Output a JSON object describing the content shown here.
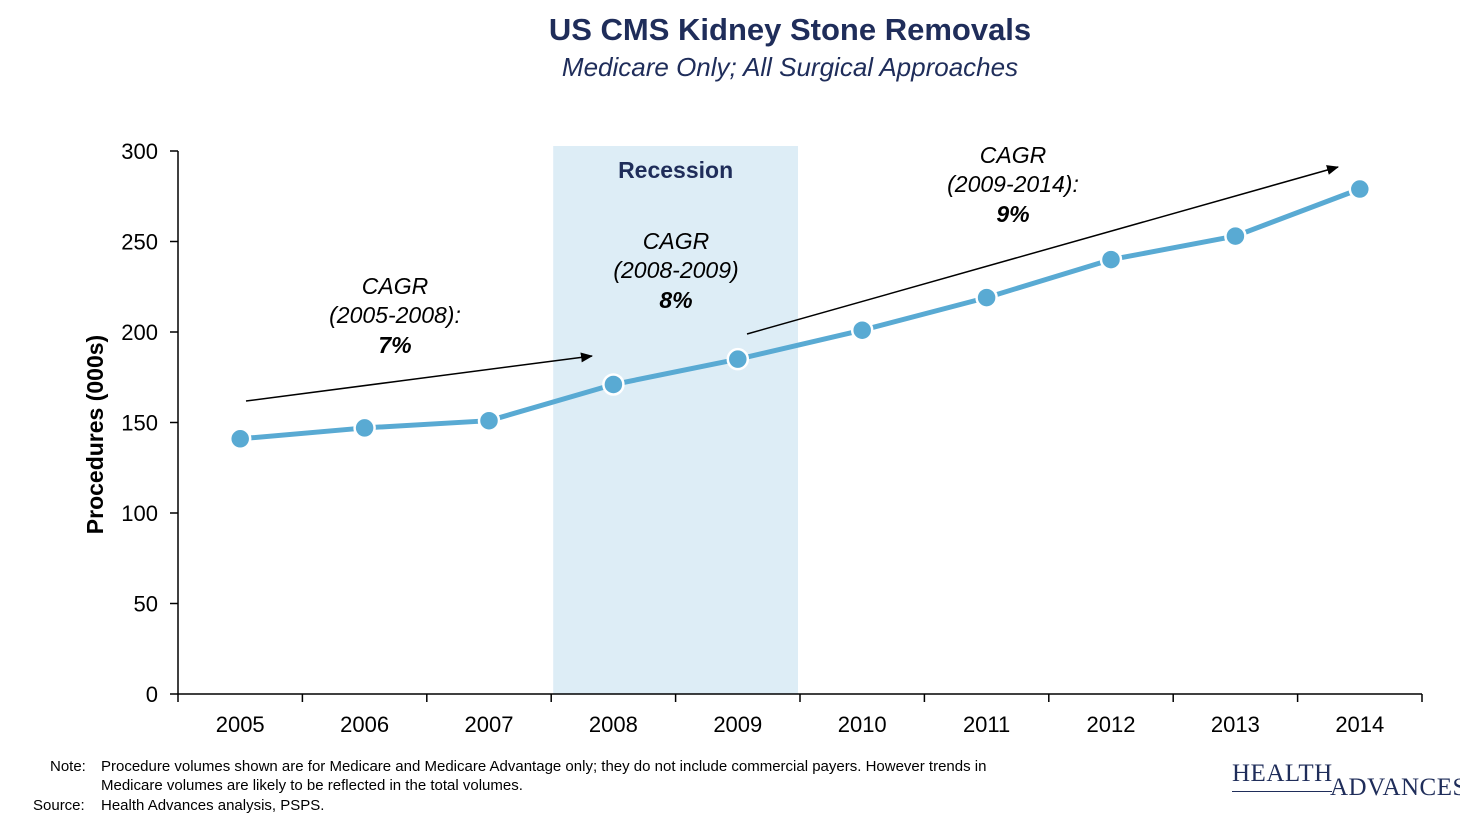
{
  "header": {
    "title": "US CMS Kidney Stone Removals",
    "subtitle": "Medicare Only; All Surgical Approaches"
  },
  "chart_data": {
    "type": "line",
    "title": "US CMS Kidney Stone Removals",
    "subtitle": "Medicare Only; All Surgical Approaches",
    "xlabel": "",
    "ylabel": "Procedures (000s)",
    "categories": [
      "2005",
      "2006",
      "2007",
      "2008",
      "2009",
      "2010",
      "2011",
      "2012",
      "2013",
      "2014"
    ],
    "series": [
      {
        "values": [
          141,
          147,
          151,
          171,
          185,
          201,
          219,
          240,
          253,
          279
        ]
      }
    ],
    "ylim": [
      0,
      300
    ],
    "yticks": [
      "0",
      "50",
      "100",
      "150",
      "200",
      "250",
      "300"
    ],
    "grid": false,
    "line_color": "#59aad3",
    "shade": {
      "label": "Recession",
      "from": "2008",
      "to": "2009",
      "color": "#ddedf6"
    },
    "annotations": [
      {
        "line1": "CAGR",
        "line2": "(2005-2008):",
        "value": "7%"
      },
      {
        "line1": "CAGR",
        "line2": "(2008-2009)",
        "value": "8%"
      },
      {
        "line1": "CAGR",
        "line2": "(2009-2014):",
        "value": "9%"
      }
    ]
  },
  "footer": {
    "note_label": "Note:",
    "note_line1": "Procedure volumes shown are for Medicare and Medicare Advantage only; they do not include commercial payers. However trends in",
    "note_line2": "Medicare volumes are likely to be reflected in the total volumes.",
    "source_label": "Source:",
    "source_text": "Health Advances analysis, PSPS."
  },
  "logo": {
    "line1": "HEALTH",
    "line2": "ADVANCES"
  }
}
